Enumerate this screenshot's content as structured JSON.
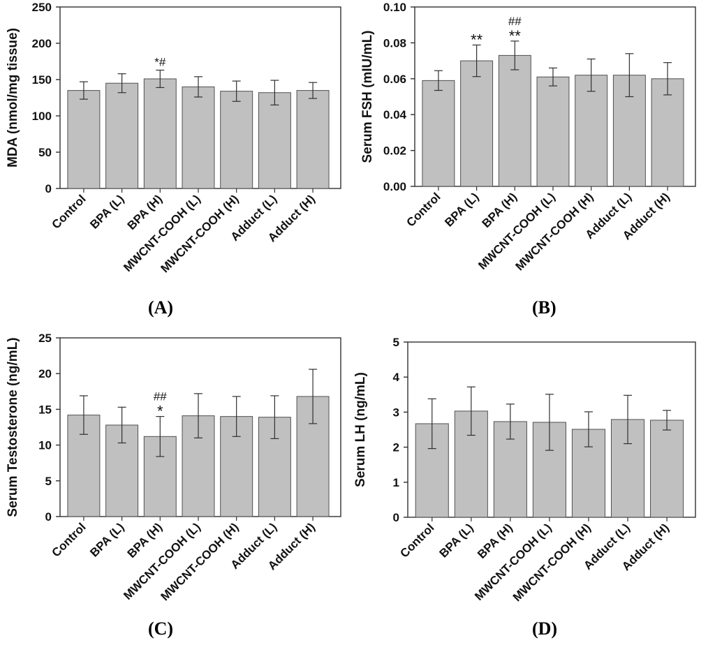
{
  "figure": {
    "panel_labels": [
      "(A)",
      "(B)",
      "(C)",
      "(D)"
    ]
  },
  "colors": {
    "bar_fill": "#c0c0c0",
    "bar_stroke": "#505050",
    "axis": "#303030",
    "text": "#111111"
  },
  "chart_data": [
    {
      "type": "bar",
      "panel": "(A)",
      "ylabel": "MDA (nmol/mg tissue)",
      "categories": [
        "Control",
        "BPA (L)",
        "BPA (H)",
        "MWCNT-COOH (L)",
        "MWCNT-COOH (H)",
        "Adduct (L)",
        "Adduct (H)"
      ],
      "values": [
        135,
        145,
        151,
        140,
        134,
        132,
        135
      ],
      "errors": [
        12,
        13,
        12,
        14,
        14,
        17,
        11
      ],
      "annotations": [
        "",
        "",
        "*#",
        "",
        "",
        "",
        ""
      ],
      "ylim": [
        0,
        250
      ],
      "yticks": [
        0,
        50,
        100,
        150,
        200,
        250
      ],
      "tick_labels": [
        "0",
        "50",
        "100",
        "150",
        "200",
        "250"
      ]
    },
    {
      "type": "bar",
      "panel": "(B)",
      "ylabel": "Serum FSH (mIU/mL)",
      "categories": [
        "Control",
        "BPA (L)",
        "BPA (H)",
        "MWCNT-COOH (L)",
        "MWCNT-COOH (H)",
        "Adduct (L)",
        "Adduct (H)"
      ],
      "values": [
        0.059,
        0.07,
        0.073,
        0.061,
        0.062,
        0.062,
        0.06
      ],
      "errors": [
        0.0055,
        0.0088,
        0.008,
        0.005,
        0.009,
        0.012,
        0.009
      ],
      "annotations": [
        "",
        "**",
        "##\n**",
        "",
        "",
        "",
        ""
      ],
      "ylim": [
        0,
        0.1
      ],
      "yticks": [
        0,
        0.02,
        0.04,
        0.06,
        0.08,
        0.1
      ],
      "tick_labels": [
        "0.00",
        "0.02",
        "0.04",
        "0.06",
        "0.08",
        "0.10"
      ]
    },
    {
      "type": "bar",
      "panel": "(C)",
      "ylabel": "Serum Testosterone (ng/mL)",
      "categories": [
        "Control",
        "BPA (L)",
        "BPA (H)",
        "MWCNT-COOH (L)",
        "MWCNT-COOH (H)",
        "Adduct (L)",
        "Adduct (H)"
      ],
      "values": [
        14.2,
        12.8,
        11.2,
        14.1,
        14.0,
        13.9,
        16.8
      ],
      "errors": [
        2.7,
        2.5,
        2.8,
        3.1,
        2.8,
        3.0,
        3.8
      ],
      "annotations": [
        "",
        "",
        "##\n*",
        "",
        "",
        "",
        ""
      ],
      "ylim": [
        0,
        25
      ],
      "yticks": [
        0,
        5,
        10,
        15,
        20,
        25
      ],
      "tick_labels": [
        "0",
        "5",
        "10",
        "15",
        "20",
        "25"
      ]
    },
    {
      "type": "bar",
      "panel": "(D)",
      "ylabel": "Serum LH (ng/mL)",
      "categories": [
        "Control",
        "BPA (L)",
        "BPA (H)",
        "MWCNT-COOH (L)",
        "MWCNT-COOH (H)",
        "Adduct (L)",
        "Adduct (H)"
      ],
      "values": [
        2.67,
        3.03,
        2.73,
        2.71,
        2.51,
        2.79,
        2.77
      ],
      "errors": [
        0.71,
        0.69,
        0.5,
        0.8,
        0.5,
        0.69,
        0.28
      ],
      "annotations": [
        "",
        "",
        "",
        "",
        "",
        "",
        ""
      ],
      "ylim": [
        0,
        5
      ],
      "yticks": [
        0,
        1,
        2,
        3,
        4,
        5
      ],
      "tick_labels": [
        "0",
        "1",
        "2",
        "3",
        "4",
        "5"
      ]
    }
  ]
}
